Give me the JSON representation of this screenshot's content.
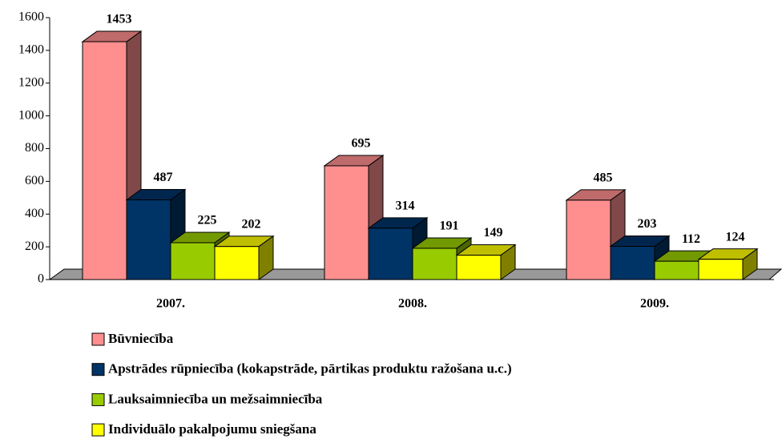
{
  "chart_data": {
    "type": "bar3d",
    "categories": [
      "2007.",
      "2008.",
      "2009."
    ],
    "series": [
      {
        "name": "Būvniecība",
        "color": "#ff8f8f",
        "values": [
          1453,
          695,
          485
        ]
      },
      {
        "name": "Apstrādes rūpniecība (kokapstrāde, pārtikas produktu ražošana u.c.)",
        "color": "#003366",
        "values": [
          487,
          314,
          203
        ]
      },
      {
        "name": "Lauksaimniecība un mežsaimniecība",
        "color": "#99cc00",
        "values": [
          225,
          191,
          112
        ]
      },
      {
        "name": "Individuālo pakalpojumu sniegšana",
        "color": "#ffff00",
        "values": [
          202,
          149,
          124
        ]
      }
    ],
    "ylim": [
      0,
      1600
    ],
    "yticks": [
      0,
      200,
      400,
      600,
      800,
      1000,
      1200,
      1400,
      1600
    ],
    "legend": "bottom"
  }
}
